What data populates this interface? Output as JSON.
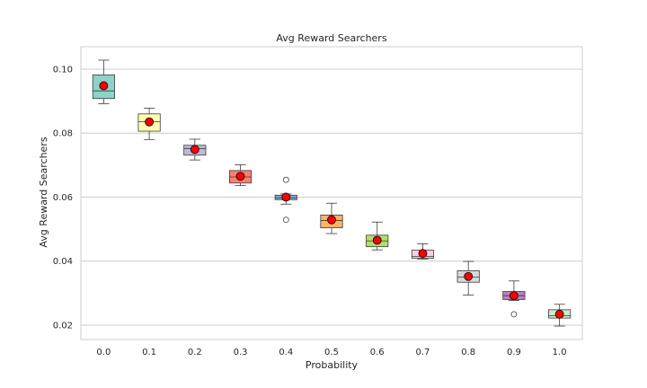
{
  "chart_data": {
    "type": "box",
    "title": "Avg Reward Searchers",
    "xlabel": "Probability",
    "ylabel": "Avg Reward Searchers",
    "ylim": [
      0.0155,
      0.107
    ],
    "yticks": [
      "0.02",
      "0.04",
      "0.06",
      "0.08",
      "0.10"
    ],
    "grid": "horizontal",
    "legend": "none",
    "categories": [
      "0.0",
      "0.1",
      "0.2",
      "0.3",
      "0.4",
      "0.5",
      "0.6",
      "0.7",
      "0.8",
      "0.9",
      "1.0"
    ],
    "series": [
      {
        "whisker_low": 0.0892,
        "q1": 0.0908,
        "median": 0.0932,
        "q3": 0.0982,
        "whisker_high": 0.1028,
        "mean": 0.0948,
        "outliers": [],
        "color": "#8dd3c7"
      },
      {
        "whisker_low": 0.078,
        "q1": 0.0806,
        "median": 0.0836,
        "q3": 0.086,
        "whisker_high": 0.0878,
        "mean": 0.0835,
        "outliers": [],
        "color": "#ffffb3"
      },
      {
        "whisker_low": 0.0716,
        "q1": 0.0731,
        "median": 0.0752,
        "q3": 0.0762,
        "whisker_high": 0.0781,
        "mean": 0.0749,
        "outliers": [],
        "color": "#bebada"
      },
      {
        "whisker_low": 0.0636,
        "q1": 0.0644,
        "median": 0.0663,
        "q3": 0.0683,
        "whisker_high": 0.0701,
        "mean": 0.0665,
        "outliers": [],
        "color": "#fb8072"
      },
      {
        "whisker_low": 0.0578,
        "q1": 0.0592,
        "median": 0.0598,
        "q3": 0.0606,
        "whisker_high": 0.061,
        "mean": 0.06,
        "outliers": [
          0.0654,
          0.0529
        ],
        "color": "#80b1d3"
      },
      {
        "whisker_low": 0.0486,
        "q1": 0.0504,
        "median": 0.0527,
        "q3": 0.0544,
        "whisker_high": 0.0581,
        "mean": 0.0529,
        "outliers": [],
        "color": "#fdb462"
      },
      {
        "whisker_low": 0.0435,
        "q1": 0.0445,
        "median": 0.0463,
        "q3": 0.0481,
        "whisker_high": 0.0522,
        "mean": 0.0465,
        "outliers": [],
        "color": "#b3de69"
      },
      {
        "whisker_low": 0.0406,
        "q1": 0.0409,
        "median": 0.0415,
        "q3": 0.0434,
        "whisker_high": 0.0454,
        "mean": 0.0424,
        "outliers": [],
        "color": "#fccde5"
      },
      {
        "whisker_low": 0.0294,
        "q1": 0.0334,
        "median": 0.035,
        "q3": 0.037,
        "whisker_high": 0.0399,
        "mean": 0.0352,
        "outliers": [],
        "color": "#d9d9d9"
      },
      {
        "whisker_low": 0.0277,
        "q1": 0.028,
        "median": 0.0292,
        "q3": 0.0305,
        "whisker_high": 0.0338,
        "mean": 0.0292,
        "outliers": [
          0.0234
        ],
        "color": "#bc80bd"
      },
      {
        "whisker_low": 0.0197,
        "q1": 0.0222,
        "median": 0.0229,
        "q3": 0.0248,
        "whisker_high": 0.0265,
        "mean": 0.0234,
        "outliers": [],
        "color": "#ccebc5"
      }
    ],
    "mean_marker_color": "#ff0000"
  }
}
